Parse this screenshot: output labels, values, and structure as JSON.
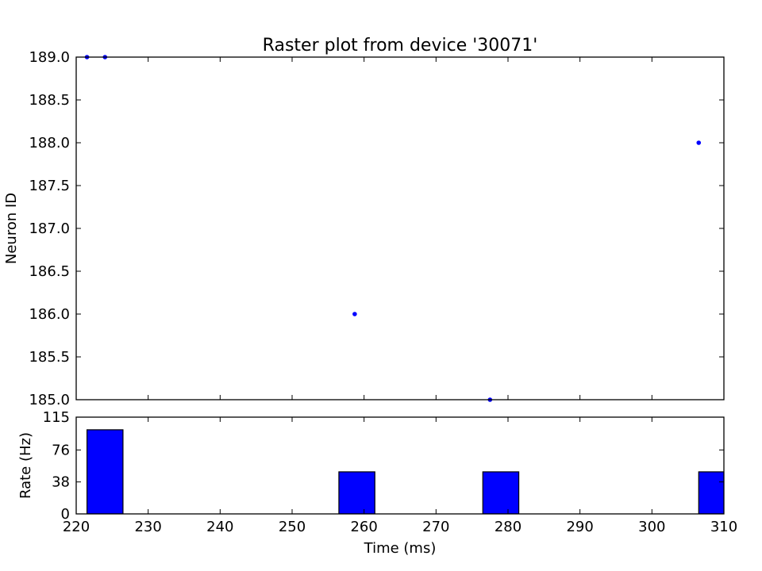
{
  "chart_data": [
    {
      "type": "scatter",
      "title": "Raster plot from device '30071'",
      "xlabel": "",
      "ylabel": "Neuron ID",
      "xlim": [
        220,
        310
      ],
      "ylim": [
        185.0,
        189.0
      ],
      "yticks": [
        "185.0",
        "185.5",
        "186.0",
        "186.5",
        "187.0",
        "187.5",
        "188.0",
        "188.5",
        "189.0"
      ],
      "marker_color": "#0000ff",
      "points": [
        {
          "x": 221.5,
          "y": 189
        },
        {
          "x": 224.0,
          "y": 189
        },
        {
          "x": 258.7,
          "y": 186
        },
        {
          "x": 277.5,
          "y": 185
        },
        {
          "x": 306.5,
          "y": 188
        }
      ]
    },
    {
      "type": "bar",
      "title": "",
      "xlabel": "Time (ms)",
      "ylabel": "Rate (Hz)",
      "xlim": [
        220,
        310
      ],
      "ylim": [
        0,
        115
      ],
      "xticks": [
        "220",
        "230",
        "240",
        "250",
        "260",
        "270",
        "280",
        "290",
        "300",
        "310"
      ],
      "yticks": [
        "0",
        "38",
        "76",
        "115"
      ],
      "bar_color": "#0000ff",
      "bins": [
        {
          "start": 221.5,
          "end": 226.5,
          "value": 100
        },
        {
          "start": 256.5,
          "end": 261.5,
          "value": 50
        },
        {
          "start": 276.5,
          "end": 281.5,
          "value": 50
        },
        {
          "start": 306.5,
          "end": 311.5,
          "value": 50
        }
      ]
    }
  ]
}
